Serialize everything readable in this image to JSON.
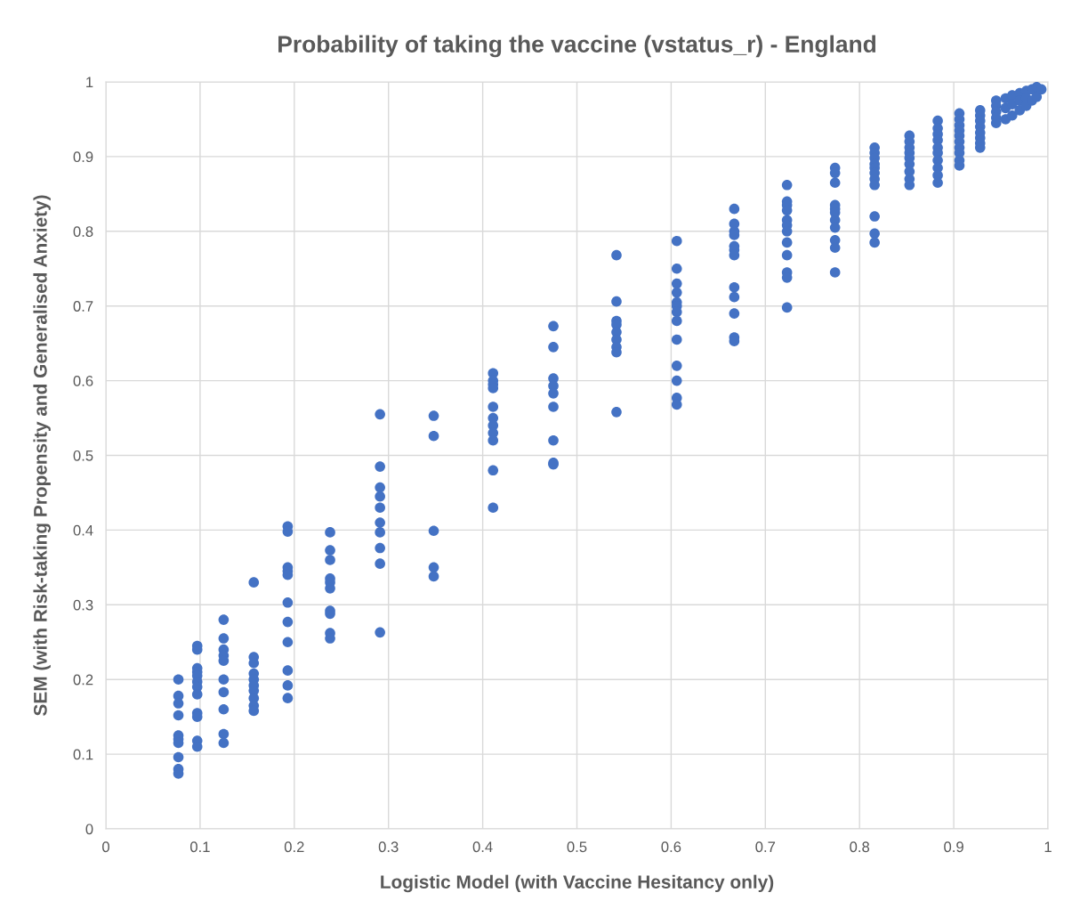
{
  "chart_data": {
    "type": "scatter",
    "title": "Probability of taking the vaccine (vstatus_r) - England",
    "xlabel": "Logistic Model (with Vaccine Hesitancy only)",
    "ylabel": "SEM (with Risk-taking Propensity and Generalised Anxiety)",
    "xlim": [
      0,
      1
    ],
    "ylim": [
      0,
      1
    ],
    "xticks": [
      0,
      0.1,
      0.2,
      0.3,
      0.4,
      0.5,
      0.6,
      0.7,
      0.8,
      0.9,
      1
    ],
    "yticks": [
      0,
      0.1,
      0.2,
      0.3,
      0.4,
      0.5,
      0.6,
      0.7,
      0.8,
      0.9,
      1
    ],
    "grid": true,
    "marker": "circle",
    "series": [
      {
        "color": "#4472c4",
        "x": [
          0.077,
          0.077,
          0.077,
          0.077,
          0.077,
          0.077,
          0.077,
          0.077,
          0.077,
          0.077,
          0.097,
          0.097,
          0.097,
          0.097,
          0.097,
          0.097,
          0.097,
          0.097,
          0.097,
          0.097,
          0.097,
          0.097,
          0.125,
          0.125,
          0.125,
          0.125,
          0.125,
          0.125,
          0.125,
          0.125,
          0.125,
          0.125,
          0.157,
          0.157,
          0.157,
          0.157,
          0.157,
          0.157,
          0.157,
          0.157,
          0.157,
          0.157,
          0.193,
          0.193,
          0.193,
          0.193,
          0.193,
          0.193,
          0.193,
          0.193,
          0.193,
          0.193,
          0.193,
          0.238,
          0.238,
          0.238,
          0.238,
          0.238,
          0.238,
          0.238,
          0.238,
          0.238,
          0.238,
          0.291,
          0.291,
          0.291,
          0.291,
          0.291,
          0.291,
          0.291,
          0.291,
          0.291,
          0.291,
          0.348,
          0.348,
          0.348,
          0.348,
          0.348,
          0.411,
          0.411,
          0.411,
          0.411,
          0.411,
          0.411,
          0.411,
          0.411,
          0.411,
          0.411,
          0.411,
          0.475,
          0.475,
          0.475,
          0.475,
          0.475,
          0.475,
          0.475,
          0.475,
          0.475,
          0.542,
          0.542,
          0.542,
          0.542,
          0.542,
          0.542,
          0.542,
          0.542,
          0.542,
          0.606,
          0.606,
          0.606,
          0.606,
          0.606,
          0.606,
          0.606,
          0.606,
          0.606,
          0.606,
          0.606,
          0.606,
          0.606,
          0.667,
          0.667,
          0.667,
          0.667,
          0.667,
          0.667,
          0.667,
          0.667,
          0.667,
          0.667,
          0.667,
          0.667,
          0.723,
          0.723,
          0.723,
          0.723,
          0.723,
          0.723,
          0.723,
          0.723,
          0.723,
          0.723,
          0.723,
          0.723,
          0.774,
          0.774,
          0.774,
          0.774,
          0.774,
          0.774,
          0.774,
          0.774,
          0.774,
          0.774,
          0.774,
          0.816,
          0.816,
          0.816,
          0.816,
          0.816,
          0.816,
          0.816,
          0.816,
          0.816,
          0.816,
          0.816,
          0.853,
          0.853,
          0.853,
          0.853,
          0.853,
          0.853,
          0.853,
          0.853,
          0.853,
          0.883,
          0.883,
          0.883,
          0.883,
          0.883,
          0.883,
          0.883,
          0.883,
          0.883,
          0.883,
          0.906,
          0.906,
          0.906,
          0.906,
          0.906,
          0.906,
          0.906,
          0.906,
          0.906,
          0.906,
          0.928,
          0.928,
          0.928,
          0.928,
          0.928,
          0.928,
          0.928,
          0.928,
          0.945,
          0.945,
          0.945,
          0.945,
          0.945,
          0.955,
          0.955,
          0.955,
          0.962,
          0.962,
          0.962,
          0.97,
          0.97,
          0.97,
          0.977,
          0.977,
          0.977,
          0.983,
          0.983,
          0.988,
          0.988,
          0.993
        ],
        "values": [
          0.2,
          0.178,
          0.168,
          0.152,
          0.125,
          0.12,
          0.115,
          0.096,
          0.08,
          0.074,
          0.245,
          0.24,
          0.215,
          0.21,
          0.205,
          0.197,
          0.19,
          0.18,
          0.155,
          0.15,
          0.118,
          0.11,
          0.28,
          0.255,
          0.24,
          0.232,
          0.225,
          0.2,
          0.183,
          0.16,
          0.127,
          0.115,
          0.33,
          0.23,
          0.222,
          0.208,
          0.2,
          0.192,
          0.185,
          0.175,
          0.165,
          0.158,
          0.405,
          0.398,
          0.35,
          0.345,
          0.34,
          0.303,
          0.277,
          0.25,
          0.212,
          0.192,
          0.175,
          0.397,
          0.373,
          0.36,
          0.335,
          0.33,
          0.322,
          0.292,
          0.288,
          0.262,
          0.255,
          0.555,
          0.485,
          0.457,
          0.445,
          0.43,
          0.41,
          0.397,
          0.376,
          0.355,
          0.263,
          0.553,
          0.526,
          0.399,
          0.35,
          0.338,
          0.61,
          0.6,
          0.595,
          0.59,
          0.565,
          0.55,
          0.54,
          0.53,
          0.52,
          0.48,
          0.43,
          0.673,
          0.645,
          0.603,
          0.593,
          0.583,
          0.565,
          0.52,
          0.49,
          0.488,
          0.768,
          0.706,
          0.68,
          0.675,
          0.665,
          0.655,
          0.645,
          0.638,
          0.558,
          0.787,
          0.75,
          0.73,
          0.718,
          0.705,
          0.7,
          0.692,
          0.68,
          0.655,
          0.62,
          0.6,
          0.577,
          0.568,
          0.83,
          0.81,
          0.8,
          0.795,
          0.78,
          0.775,
          0.768,
          0.725,
          0.712,
          0.69,
          0.658,
          0.653,
          0.862,
          0.84,
          0.835,
          0.828,
          0.815,
          0.808,
          0.8,
          0.785,
          0.768,
          0.745,
          0.738,
          0.698,
          0.885,
          0.878,
          0.865,
          0.835,
          0.83,
          0.825,
          0.815,
          0.805,
          0.788,
          0.778,
          0.745,
          0.912,
          0.905,
          0.898,
          0.89,
          0.885,
          0.878,
          0.87,
          0.862,
          0.82,
          0.797,
          0.785,
          0.928,
          0.92,
          0.912,
          0.905,
          0.898,
          0.89,
          0.88,
          0.87,
          0.862,
          0.948,
          0.938,
          0.93,
          0.922,
          0.912,
          0.905,
          0.895,
          0.885,
          0.875,
          0.865,
          0.958,
          0.95,
          0.942,
          0.935,
          0.928,
          0.92,
          0.912,
          0.905,
          0.895,
          0.888,
          0.962,
          0.955,
          0.948,
          0.94,
          0.932,
          0.925,
          0.918,
          0.912,
          0.975,
          0.968,
          0.96,
          0.952,
          0.945,
          0.978,
          0.965,
          0.95,
          0.982,
          0.97,
          0.955,
          0.985,
          0.975,
          0.962,
          0.988,
          0.978,
          0.968,
          0.99,
          0.975,
          0.993,
          0.98,
          0.99
        ]
      }
    ]
  }
}
